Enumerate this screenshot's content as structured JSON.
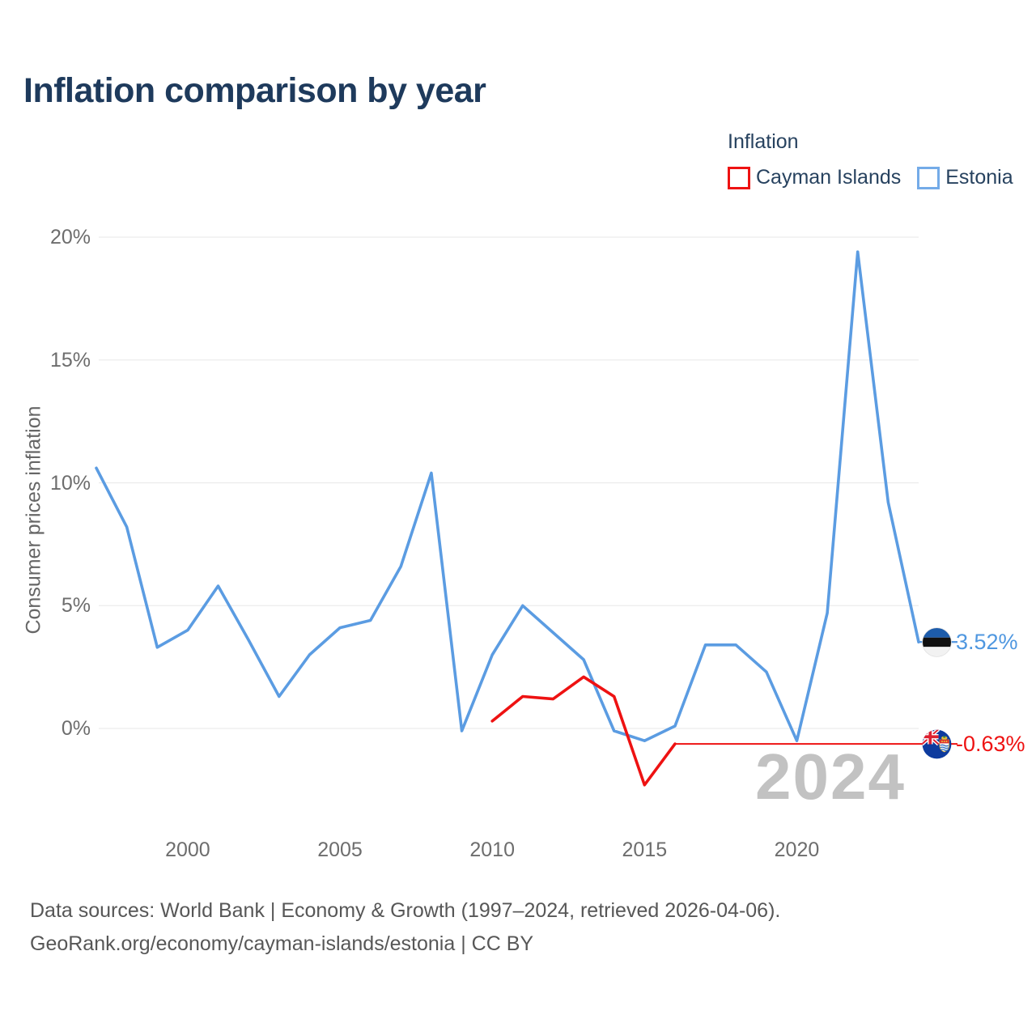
{
  "header": {
    "title": "Inflation comparison by year"
  },
  "legend": {
    "title": "Inflation",
    "items": [
      {
        "label": "Cayman Islands",
        "color": "#ee1212"
      },
      {
        "label": "Estonia",
        "color": "#74abe8"
      }
    ]
  },
  "chart_data": {
    "type": "line",
    "title": "Inflation comparison by year",
    "xlabel": "",
    "ylabel": "Consumer prices inflation",
    "grid": "horizontal",
    "legend_position": "top-right",
    "x": [
      1997,
      1998,
      1999,
      2000,
      2001,
      2002,
      2003,
      2004,
      2005,
      2006,
      2007,
      2008,
      2009,
      2010,
      2011,
      2012,
      2013,
      2014,
      2015,
      2016,
      2017,
      2018,
      2019,
      2020,
      2021,
      2022,
      2023,
      2024
    ],
    "series": [
      {
        "name": "Cayman Islands",
        "color": "#ee1212",
        "values": [
          null,
          null,
          null,
          null,
          null,
          null,
          null,
          null,
          null,
          null,
          null,
          null,
          null,
          0.3,
          1.3,
          1.2,
          2.1,
          1.3,
          -2.3,
          -0.63,
          -0.63,
          -0.63,
          -0.63,
          -0.63,
          -0.63,
          -0.63,
          -0.63,
          -0.63
        ],
        "observed_through": 2016,
        "final_value": -0.63
      },
      {
        "name": "Estonia",
        "color": "#5b9ce2",
        "values": [
          10.6,
          8.2,
          3.3,
          4.0,
          5.8,
          3.6,
          1.3,
          3.0,
          4.1,
          4.4,
          6.6,
          10.4,
          -0.1,
          3.0,
          5.0,
          3.9,
          2.8,
          -0.1,
          -0.5,
          0.1,
          3.4,
          3.4,
          2.3,
          -0.5,
          4.7,
          19.4,
          9.2,
          3.52
        ],
        "final_value": 3.52
      }
    ],
    "xticks": [
      2000,
      2005,
      2010,
      2015,
      2020
    ],
    "yticks": [
      {
        "value": 0,
        "label": "0%"
      },
      {
        "value": 5,
        "label": "5%"
      },
      {
        "value": 10,
        "label": "10%"
      },
      {
        "value": 15,
        "label": "15%"
      },
      {
        "value": 20,
        "label": "20%"
      }
    ],
    "ylim": [
      -3.5,
      21
    ],
    "end_labels": [
      {
        "series": "Cayman Islands",
        "text": "-0.63%",
        "color": "#ee1212"
      },
      {
        "series": "Estonia",
        "text": "3.52%",
        "color": "#4f97e0"
      }
    ],
    "watermark": "2024"
  },
  "footer": {
    "line1": "Data sources: World Bank | Economy & Growth (1997–2024, retrieved 2026-04-06).",
    "line2": "GeoRank.org/economy/cayman-islands/estonia | CC BY"
  }
}
